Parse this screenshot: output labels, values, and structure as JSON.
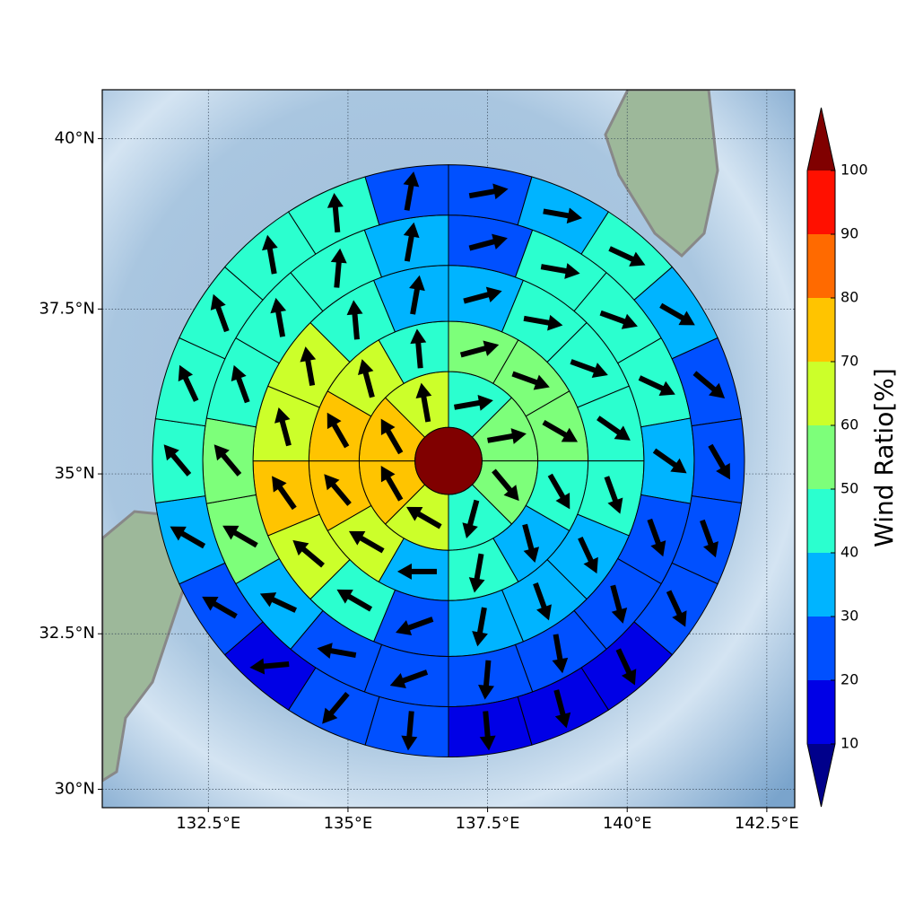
{
  "chart_data": {
    "type": "polar-sector-map",
    "projection": "mercator",
    "xlim": [
      130.6,
      143.0
    ],
    "ylim": [
      29.7,
      40.7
    ],
    "xticks": [
      {
        "value": 132.5,
        "label": "132.5°E"
      },
      {
        "value": 135,
        "label": "135°E"
      },
      {
        "value": 137.5,
        "label": "137.5°E"
      },
      {
        "value": 140,
        "label": "140°E"
      },
      {
        "value": 142.5,
        "label": "142.5°E"
      }
    ],
    "yticks": [
      {
        "value": 30,
        "label": "30°N"
      },
      {
        "value": 32.5,
        "label": "32.5°N"
      },
      {
        "value": 35,
        "label": "35°N"
      },
      {
        "value": 37.5,
        "label": "37.5°N"
      },
      {
        "value": 40,
        "label": "40°N"
      }
    ],
    "grid": true,
    "center": {
      "lon": 136.8,
      "lat": 35.2,
      "value": 105
    },
    "ring_radii_deg": [
      0.6,
      1.6,
      2.5,
      3.5,
      4.4,
      5.3
    ],
    "rings": [
      {
        "values": [
          45,
          55,
          55,
          45,
          65,
          75,
          75,
          65
        ],
        "directions": [
          80,
          80,
          140,
          195,
          300,
          330,
          330,
          350
        ]
      },
      {
        "values": [
          55,
          55,
          55,
          45,
          35,
          45,
          35,
          65,
          75,
          75,
          65,
          45
        ],
        "directions": [
          75,
          110,
          120,
          150,
          165,
          190,
          270,
          300,
          320,
          330,
          345,
          355
        ]
      },
      {
        "values": [
          35,
          45,
          45,
          45,
          45,
          35,
          35,
          35,
          25,
          45,
          65,
          75,
          65,
          65,
          45,
          35
        ],
        "directions": [
          75,
          100,
          110,
          125,
          160,
          155,
          160,
          190,
          250,
          300,
          310,
          325,
          345,
          350,
          355,
          10
        ]
      },
      {
        "values": [
          25,
          45,
          45,
          45,
          35,
          25,
          25,
          25,
          25,
          25,
          25,
          35,
          55,
          55,
          45,
          45,
          45,
          35
        ],
        "directions": [
          75,
          100,
          110,
          115,
          125,
          160,
          165,
          170,
          185,
          250,
          280,
          295,
          300,
          320,
          340,
          350,
          5,
          10
        ]
      },
      {
        "values": [
          25,
          35,
          45,
          35,
          25,
          25,
          25,
          25,
          15,
          15,
          15,
          25,
          25,
          15,
          25,
          35,
          45,
          45,
          45,
          45,
          45,
          25
        ],
        "directions": [
          80,
          100,
          115,
          120,
          130,
          150,
          160,
          155,
          155,
          165,
          175,
          185,
          220,
          265,
          300,
          300,
          320,
          335,
          340,
          350,
          355,
          10
        ]
      }
    ],
    "colorbar": {
      "label": "Wind Ratio[%]",
      "levels": [
        10,
        20,
        30,
        40,
        50,
        60,
        70,
        80,
        90,
        100
      ],
      "colors": [
        "#0000e6",
        "#0050ff",
        "#00b4ff",
        "#2bffcf",
        "#7dff7a",
        "#ccff2a",
        "#ffc400",
        "#ff6a00",
        "#ff1000"
      ],
      "under_color": "#00008b",
      "over_color": "#800000"
    }
  }
}
